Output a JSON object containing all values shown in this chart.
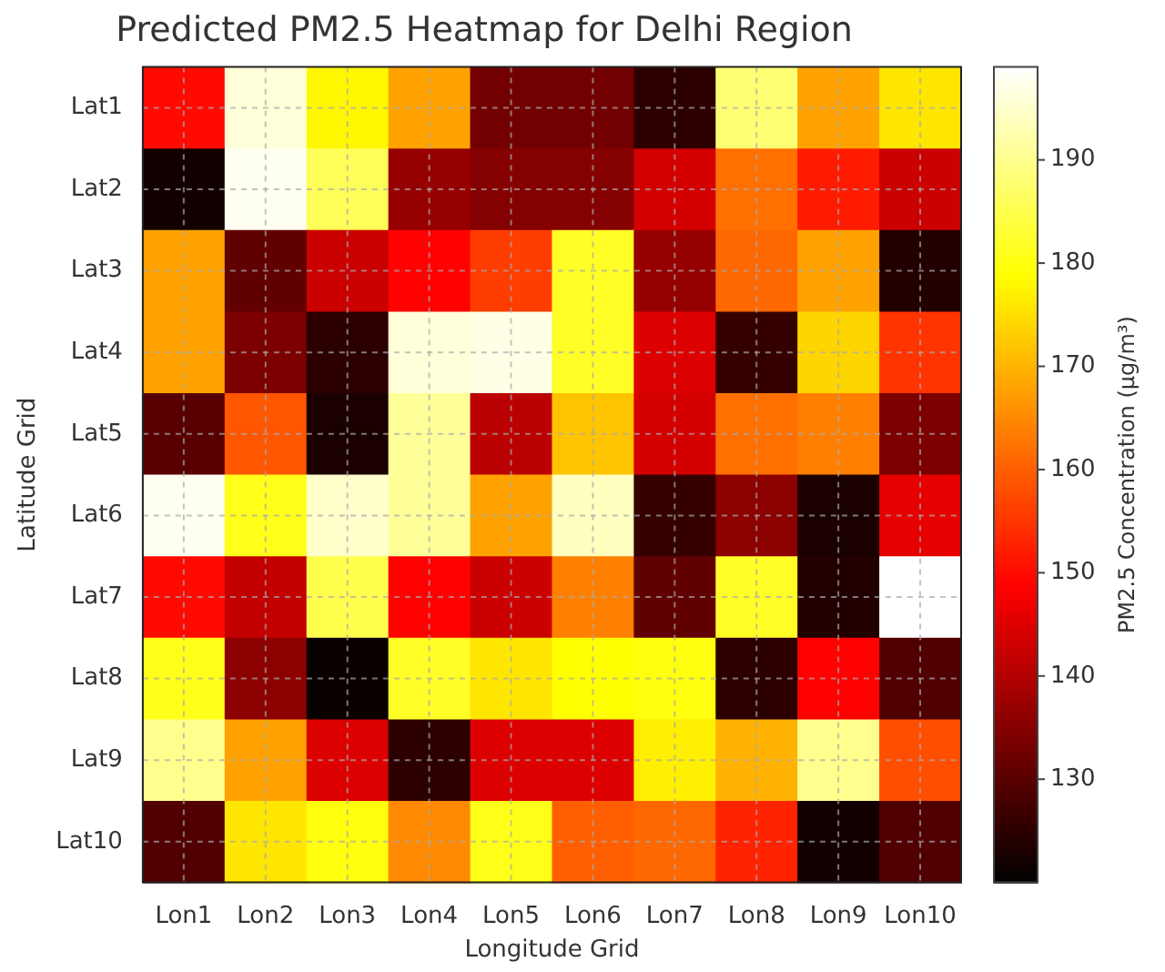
{
  "chart_data": {
    "type": "heatmap",
    "title": "Predicted PM2.5 Heatmap for Delhi Region",
    "xlabel": "Longitude Grid",
    "ylabel": "Latitude Grid",
    "clabel": "PM2.5 Concentration (µg/m³)",
    "categories": [
      "Lon1",
      "Lon2",
      "Lon3",
      "Lon4",
      "Lon5",
      "Lon6",
      "Lon7",
      "Lon8",
      "Lon9",
      "Lon10"
    ],
    "y_categories": [
      "Lat1",
      "Lat2",
      "Lat3",
      "Lat4",
      "Lat5",
      "Lat6",
      "Lat7",
      "Lat8",
      "Lat9",
      "Lat10"
    ],
    "cells": [
      [
        150,
        196,
        178,
        168,
        133,
        133,
        125,
        188,
        168,
        176
      ],
      [
        122,
        198,
        186,
        137,
        135,
        135,
        144,
        162,
        152,
        143
      ],
      [
        168,
        131,
        143,
        149,
        156,
        182,
        137,
        161,
        168,
        124
      ],
      [
        168,
        134,
        125,
        196,
        197,
        182,
        145,
        126,
        174,
        155
      ],
      [
        130,
        159,
        123,
        191,
        141,
        172,
        144,
        162,
        164,
        134
      ],
      [
        198,
        181,
        195,
        191,
        168,
        194,
        126,
        136,
        123,
        146
      ],
      [
        150,
        142,
        185,
        149,
        143,
        164,
        131,
        182,
        124,
        199
      ],
      [
        181,
        136,
        121,
        182,
        176,
        179,
        180,
        125,
        149,
        129
      ],
      [
        190,
        168,
        145,
        125,
        145,
        145,
        177,
        170,
        190,
        158
      ],
      [
        129,
        176,
        180,
        165,
        181,
        160,
        161,
        153,
        122,
        129
      ]
    ],
    "clim": [
      120,
      199
    ],
    "cticks": [
      130,
      140,
      150,
      160,
      170,
      180,
      190
    ],
    "grid": true
  }
}
